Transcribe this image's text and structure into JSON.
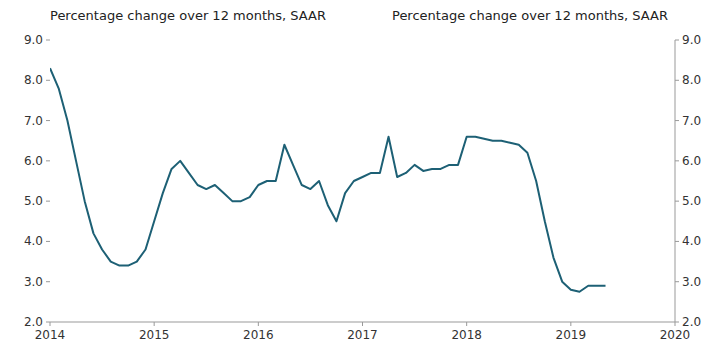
{
  "chart_data": {
    "type": "line",
    "title": "Percentage change over 12 months, SAAR",
    "subtitle": "Percentage change over 12 months, SAAR",
    "color": "#1d6075",
    "grid": false,
    "xlim": [
      2014.0,
      2020.0
    ],
    "xticks": [
      2014,
      2015,
      2016,
      2017,
      2018,
      2019,
      2020
    ],
    "ylim": [
      2.0,
      9.0
    ],
    "yticks": [
      {
        "value": 2.0,
        "label": "2.0"
      },
      {
        "value": 3.0,
        "label": "3.0"
      },
      {
        "value": 4.0,
        "label": "4.0"
      },
      {
        "value": 5.0,
        "label": "5.0"
      },
      {
        "value": 6.0,
        "label": "6.0"
      },
      {
        "value": 7.0,
        "label": "7.0"
      },
      {
        "value": 8.0,
        "label": "8.0"
      },
      {
        "value": 9.0,
        "label": "9.0"
      }
    ],
    "y2lim": [
      2.0,
      9.0
    ],
    "y2ticks": [
      {
        "value": 2.0,
        "label": "2.0"
      },
      {
        "value": 3.0,
        "label": "3.0"
      },
      {
        "value": 4.0,
        "label": "4.0"
      },
      {
        "value": 5.0,
        "label": "5.0"
      },
      {
        "value": 6.0,
        "label": "6.0"
      },
      {
        "value": 7.0,
        "label": "7.0"
      },
      {
        "value": 8.0,
        "label": "8.0"
      },
      {
        "value": 9.0,
        "label": "9.0"
      }
    ],
    "x": [
      2014.0,
      2014.083,
      2014.167,
      2014.25,
      2014.333,
      2014.417,
      2014.5,
      2014.583,
      2014.667,
      2014.75,
      2014.833,
      2014.917,
      2015.0,
      2015.083,
      2015.167,
      2015.25,
      2015.333,
      2015.417,
      2015.5,
      2015.583,
      2015.667,
      2015.75,
      2015.833,
      2015.917,
      2016.0,
      2016.083,
      2016.167,
      2016.25,
      2016.333,
      2016.417,
      2016.5,
      2016.583,
      2016.667,
      2016.75,
      2016.833,
      2016.917,
      2017.0,
      2017.083,
      2017.167,
      2017.25,
      2017.333,
      2017.417,
      2017.5,
      2017.583,
      2017.667,
      2017.75,
      2017.833,
      2017.917,
      2018.0,
      2018.083,
      2018.167,
      2018.25,
      2018.333,
      2018.417,
      2018.5,
      2018.583,
      2018.667,
      2018.75,
      2018.833,
      2018.917,
      2019.0,
      2019.083,
      2019.167,
      2019.25,
      2019.333
    ],
    "values": [
      8.3,
      7.8,
      7.0,
      6.0,
      5.0,
      4.2,
      3.8,
      3.5,
      3.4,
      3.4,
      3.5,
      3.8,
      4.5,
      5.2,
      5.8,
      6.0,
      5.7,
      5.4,
      5.3,
      5.4,
      5.2,
      5.0,
      5.0,
      5.1,
      5.4,
      5.5,
      5.5,
      6.4,
      5.9,
      5.4,
      5.3,
      5.5,
      4.9,
      4.5,
      5.2,
      5.5,
      5.6,
      5.7,
      5.7,
      6.6,
      5.6,
      5.7,
      5.9,
      5.75,
      5.8,
      5.8,
      5.9,
      5.9,
      6.6,
      6.6,
      6.55,
      6.5,
      6.5,
      6.45,
      6.4,
      6.2,
      5.5,
      4.5,
      3.6,
      3.0,
      2.8,
      2.75,
      2.9,
      2.9,
      2.9
    ]
  }
}
